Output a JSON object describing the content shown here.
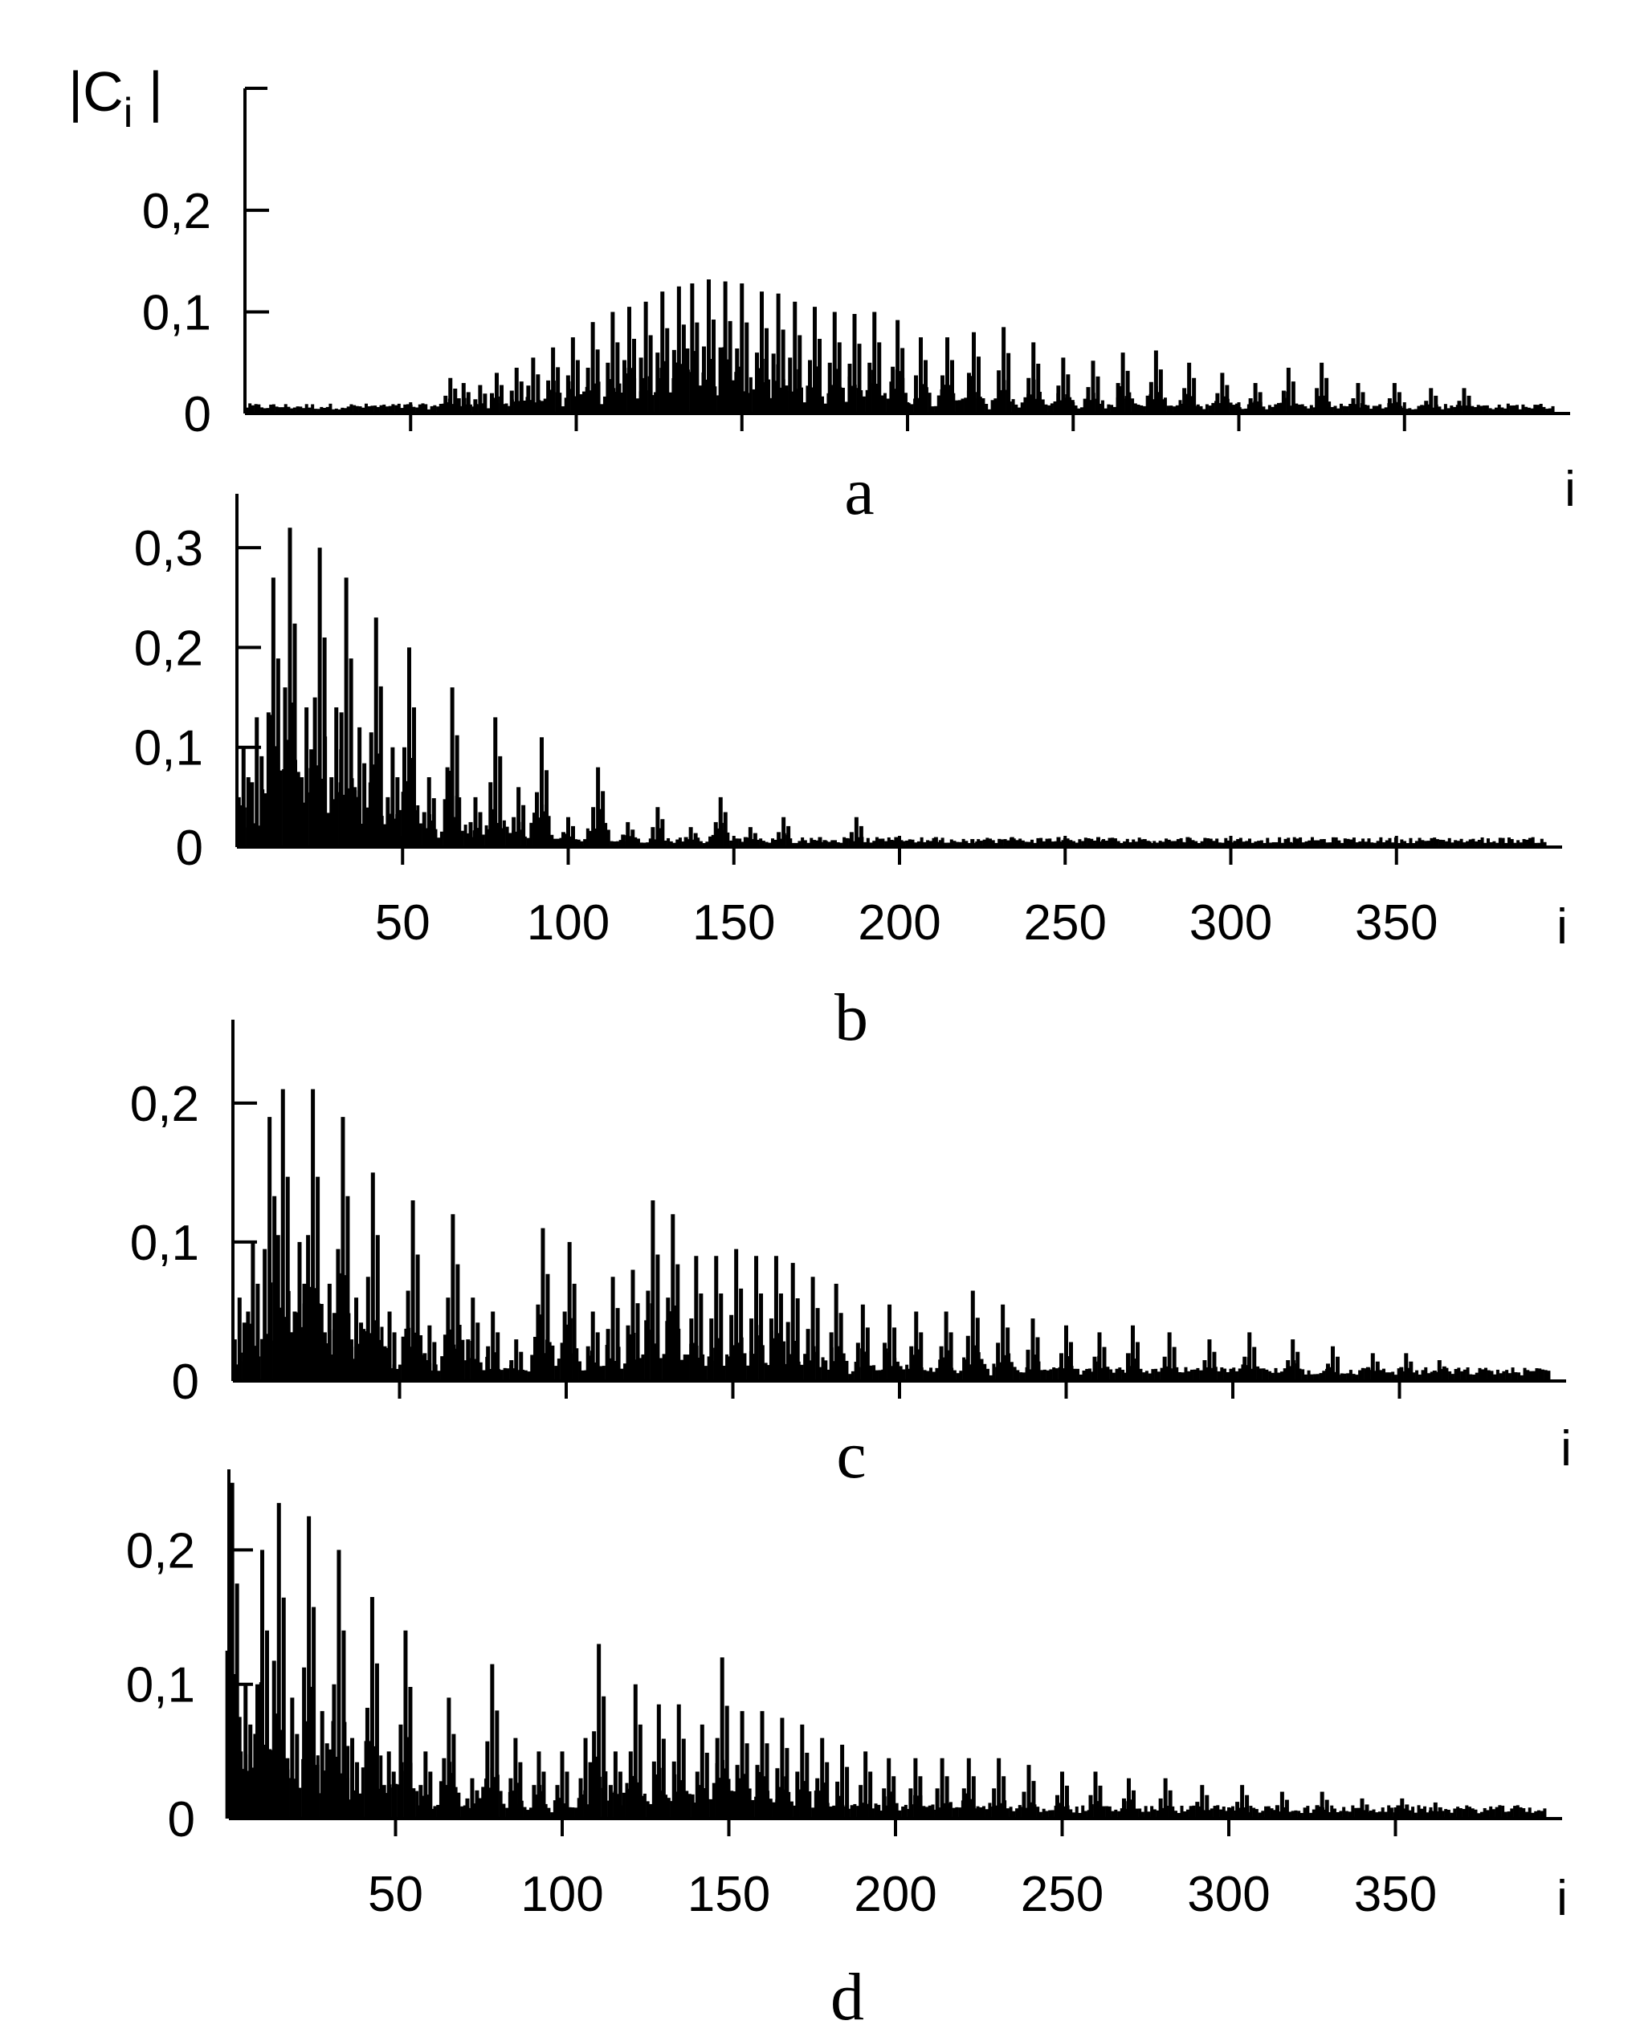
{
  "chart_data": [
    {
      "type": "bar",
      "panel_label": "a",
      "ylabel": "|C_i|",
      "xlabel": "i",
      "xlim": [
        0,
        400
      ],
      "ylim": [
        0,
        0.32
      ],
      "yticks": [
        {
          "value": 0,
          "label": "0"
        },
        {
          "value": 0.1,
          "label": "0,1"
        },
        {
          "value": 0.2,
          "label": "0,2"
        }
      ],
      "xticks": [
        {
          "value": 50,
          "label": ""
        },
        {
          "value": 100,
          "label": ""
        },
        {
          "value": 150,
          "label": ""
        },
        {
          "value": 200,
          "label": ""
        },
        {
          "value": 250,
          "label": ""
        },
        {
          "value": 300,
          "label": ""
        },
        {
          "value": 350,
          "label": ""
        }
      ],
      "peaks": [
        {
          "i": 62,
          "v": 0.035
        },
        {
          "i": 66,
          "v": 0.03
        },
        {
          "i": 71,
          "v": 0.028
        },
        {
          "i": 76,
          "v": 0.04
        },
        {
          "i": 82,
          "v": 0.045
        },
        {
          "i": 87,
          "v": 0.055
        },
        {
          "i": 93,
          "v": 0.065
        },
        {
          "i": 99,
          "v": 0.075
        },
        {
          "i": 105,
          "v": 0.09
        },
        {
          "i": 111,
          "v": 0.1
        },
        {
          "i": 116,
          "v": 0.105
        },
        {
          "i": 121,
          "v": 0.11
        },
        {
          "i": 126,
          "v": 0.12
        },
        {
          "i": 131,
          "v": 0.125
        },
        {
          "i": 135,
          "v": 0.128
        },
        {
          "i": 140,
          "v": 0.132
        },
        {
          "i": 145,
          "v": 0.13
        },
        {
          "i": 150,
          "v": 0.128
        },
        {
          "i": 156,
          "v": 0.12
        },
        {
          "i": 161,
          "v": 0.118
        },
        {
          "i": 166,
          "v": 0.11
        },
        {
          "i": 172,
          "v": 0.105
        },
        {
          "i": 178,
          "v": 0.1
        },
        {
          "i": 184,
          "v": 0.098
        },
        {
          "i": 190,
          "v": 0.1
        },
        {
          "i": 197,
          "v": 0.092
        },
        {
          "i": 204,
          "v": 0.075
        },
        {
          "i": 212,
          "v": 0.075
        },
        {
          "i": 220,
          "v": 0.08
        },
        {
          "i": 229,
          "v": 0.085
        },
        {
          "i": 238,
          "v": 0.07
        },
        {
          "i": 247,
          "v": 0.055
        },
        {
          "i": 256,
          "v": 0.052
        },
        {
          "i": 265,
          "v": 0.06
        },
        {
          "i": 275,
          "v": 0.062
        },
        {
          "i": 285,
          "v": 0.05
        },
        {
          "i": 295,
          "v": 0.04
        },
        {
          "i": 305,
          "v": 0.03
        },
        {
          "i": 315,
          "v": 0.045
        },
        {
          "i": 325,
          "v": 0.05
        },
        {
          "i": 336,
          "v": 0.03
        },
        {
          "i": 347,
          "v": 0.03
        },
        {
          "i": 358,
          "v": 0.025
        },
        {
          "i": 368,
          "v": 0.025
        }
      ]
    },
    {
      "type": "bar",
      "panel_label": "b",
      "ylabel": "",
      "xlabel": "i",
      "xlim": [
        0,
        400
      ],
      "ylim": [
        0,
        0.35
      ],
      "yticks": [
        {
          "value": 0,
          "label": "0"
        },
        {
          "value": 0.1,
          "label": "0,1"
        },
        {
          "value": 0.2,
          "label": "0,2"
        },
        {
          "value": 0.3,
          "label": "0,3"
        }
      ],
      "xticks": [
        {
          "value": 50,
          "label": "50"
        },
        {
          "value": 100,
          "label": "100"
        },
        {
          "value": 150,
          "label": "150"
        },
        {
          "value": 200,
          "label": "200"
        },
        {
          "value": 250,
          "label": "250"
        },
        {
          "value": 300,
          "label": "300"
        },
        {
          "value": 350,
          "label": "350"
        }
      ],
      "peaks": [
        {
          "i": 2,
          "v": 0.1
        },
        {
          "i": 6,
          "v": 0.13
        },
        {
          "i": 11,
          "v": 0.27
        },
        {
          "i": 16,
          "v": 0.32
        },
        {
          "i": 21,
          "v": 0.14
        },
        {
          "i": 25,
          "v": 0.3
        },
        {
          "i": 30,
          "v": 0.14
        },
        {
          "i": 33,
          "v": 0.27
        },
        {
          "i": 37,
          "v": 0.12
        },
        {
          "i": 42,
          "v": 0.23
        },
        {
          "i": 47,
          "v": 0.1
        },
        {
          "i": 52,
          "v": 0.2
        },
        {
          "i": 58,
          "v": 0.07
        },
        {
          "i": 65,
          "v": 0.16
        },
        {
          "i": 72,
          "v": 0.05
        },
        {
          "i": 78,
          "v": 0.13
        },
        {
          "i": 85,
          "v": 0.06
        },
        {
          "i": 92,
          "v": 0.11
        },
        {
          "i": 100,
          "v": 0.03
        },
        {
          "i": 109,
          "v": 0.08
        },
        {
          "i": 118,
          "v": 0.025
        },
        {
          "i": 127,
          "v": 0.04
        },
        {
          "i": 137,
          "v": 0.02
        },
        {
          "i": 146,
          "v": 0.05
        },
        {
          "i": 155,
          "v": 0.02
        },
        {
          "i": 165,
          "v": 0.03
        },
        {
          "i": 176,
          "v": 0.01
        },
        {
          "i": 187,
          "v": 0.03
        },
        {
          "i": 199,
          "v": 0.01
        },
        {
          "i": 211,
          "v": 0.01
        },
        {
          "i": 222,
          "v": 0.008
        },
        {
          "i": 234,
          "v": 0.01
        },
        {
          "i": 248,
          "v": 0.01
        },
        {
          "i": 260,
          "v": 0.01
        },
        {
          "i": 274,
          "v": 0.008
        },
        {
          "i": 287,
          "v": 0.01
        },
        {
          "i": 318,
          "v": 0.005
        },
        {
          "i": 345,
          "v": 0.004
        }
      ]
    },
    {
      "type": "bar",
      "panel_label": "c",
      "ylabel": "",
      "xlabel": "i",
      "xlim": [
        0,
        400
      ],
      "ylim": [
        0,
        0.26
      ],
      "yticks": [
        {
          "value": 0,
          "label": "0"
        },
        {
          "value": 0.1,
          "label": "0,1"
        },
        {
          "value": 0.2,
          "label": "0,2"
        }
      ],
      "xticks": [
        {
          "value": 50,
          "label": ""
        },
        {
          "value": 100,
          "label": ""
        },
        {
          "value": 150,
          "label": ""
        },
        {
          "value": 200,
          "label": ""
        },
        {
          "value": 250,
          "label": ""
        },
        {
          "value": 300,
          "label": ""
        },
        {
          "value": 350,
          "label": ""
        }
      ],
      "peaks": [
        {
          "i": 2,
          "v": 0.06
        },
        {
          "i": 6,
          "v": 0.1
        },
        {
          "i": 11,
          "v": 0.19
        },
        {
          "i": 15,
          "v": 0.21
        },
        {
          "i": 20,
          "v": 0.1
        },
        {
          "i": 24,
          "v": 0.21
        },
        {
          "i": 29,
          "v": 0.07
        },
        {
          "i": 33,
          "v": 0.19
        },
        {
          "i": 37,
          "v": 0.06
        },
        {
          "i": 42,
          "v": 0.15
        },
        {
          "i": 47,
          "v": 0.05
        },
        {
          "i": 54,
          "v": 0.13
        },
        {
          "i": 59,
          "v": 0.04
        },
        {
          "i": 66,
          "v": 0.12
        },
        {
          "i": 72,
          "v": 0.06
        },
        {
          "i": 78,
          "v": 0.05
        },
        {
          "i": 85,
          "v": 0.03
        },
        {
          "i": 93,
          "v": 0.11
        },
        {
          "i": 101,
          "v": 0.1
        },
        {
          "i": 108,
          "v": 0.05
        },
        {
          "i": 114,
          "v": 0.075
        },
        {
          "i": 120,
          "v": 0.08
        },
        {
          "i": 126,
          "v": 0.13
        },
        {
          "i": 132,
          "v": 0.12
        },
        {
          "i": 139,
          "v": 0.09
        },
        {
          "i": 145,
          "v": 0.09
        },
        {
          "i": 151,
          "v": 0.095
        },
        {
          "i": 157,
          "v": 0.09
        },
        {
          "i": 163,
          "v": 0.09
        },
        {
          "i": 168,
          "v": 0.085
        },
        {
          "i": 174,
          "v": 0.075
        },
        {
          "i": 181,
          "v": 0.07
        },
        {
          "i": 189,
          "v": 0.055
        },
        {
          "i": 197,
          "v": 0.055
        },
        {
          "i": 205,
          "v": 0.05
        },
        {
          "i": 214,
          "v": 0.05
        },
        {
          "i": 222,
          "v": 0.065
        },
        {
          "i": 231,
          "v": 0.055
        },
        {
          "i": 240,
          "v": 0.045
        },
        {
          "i": 250,
          "v": 0.04
        },
        {
          "i": 260,
          "v": 0.035
        },
        {
          "i": 270,
          "v": 0.04
        },
        {
          "i": 281,
          "v": 0.035
        },
        {
          "i": 293,
          "v": 0.03
        },
        {
          "i": 305,
          "v": 0.035
        },
        {
          "i": 318,
          "v": 0.03
        },
        {
          "i": 330,
          "v": 0.025
        },
        {
          "i": 342,
          "v": 0.02
        },
        {
          "i": 352,
          "v": 0.02
        },
        {
          "i": 362,
          "v": 0.015
        }
      ]
    },
    {
      "type": "bar",
      "panel_label": "d",
      "ylabel": "",
      "xlabel": "i",
      "xlim": [
        0,
        400
      ],
      "ylim": [
        0,
        0.26
      ],
      "yticks": [
        {
          "value": 0,
          "label": "0"
        },
        {
          "value": 0.1,
          "label": "0,1"
        },
        {
          "value": 0.2,
          "label": "0,2"
        }
      ],
      "xticks": [
        {
          "value": 50,
          "label": "50"
        },
        {
          "value": 100,
          "label": "100"
        },
        {
          "value": 150,
          "label": "150"
        },
        {
          "value": 200,
          "label": "200"
        },
        {
          "value": 250,
          "label": "250"
        },
        {
          "value": 300,
          "label": "300"
        },
        {
          "value": 350,
          "label": "350"
        }
      ],
      "peaks": [
        {
          "i": 1,
          "v": 0.25
        },
        {
          "i": 5,
          "v": 0.1
        },
        {
          "i": 10,
          "v": 0.2
        },
        {
          "i": 15,
          "v": 0.235
        },
        {
          "i": 19,
          "v": 0.09
        },
        {
          "i": 24,
          "v": 0.225
        },
        {
          "i": 28,
          "v": 0.08
        },
        {
          "i": 33,
          "v": 0.2
        },
        {
          "i": 37,
          "v": 0.06
        },
        {
          "i": 43,
          "v": 0.165
        },
        {
          "i": 48,
          "v": 0.05
        },
        {
          "i": 53,
          "v": 0.14
        },
        {
          "i": 59,
          "v": 0.05
        },
        {
          "i": 66,
          "v": 0.09
        },
        {
          "i": 73,
          "v": 0.03
        },
        {
          "i": 79,
          "v": 0.115
        },
        {
          "i": 86,
          "v": 0.06
        },
        {
          "i": 93,
          "v": 0.05
        },
        {
          "i": 100,
          "v": 0.05
        },
        {
          "i": 107,
          "v": 0.06
        },
        {
          "i": 111,
          "v": 0.13
        },
        {
          "i": 116,
          "v": 0.05
        },
        {
          "i": 122,
          "v": 0.1
        },
        {
          "i": 129,
          "v": 0.085
        },
        {
          "i": 135,
          "v": 0.085
        },
        {
          "i": 142,
          "v": 0.07
        },
        {
          "i": 148,
          "v": 0.12
        },
        {
          "i": 154,
          "v": 0.08
        },
        {
          "i": 160,
          "v": 0.08
        },
        {
          "i": 166,
          "v": 0.075
        },
        {
          "i": 172,
          "v": 0.07
        },
        {
          "i": 178,
          "v": 0.06
        },
        {
          "i": 184,
          "v": 0.055
        },
        {
          "i": 191,
          "v": 0.05
        },
        {
          "i": 198,
          "v": 0.045
        },
        {
          "i": 206,
          "v": 0.045
        },
        {
          "i": 214,
          "v": 0.045
        },
        {
          "i": 222,
          "v": 0.045
        },
        {
          "i": 231,
          "v": 0.045
        },
        {
          "i": 240,
          "v": 0.04
        },
        {
          "i": 250,
          "v": 0.035
        },
        {
          "i": 260,
          "v": 0.035
        },
        {
          "i": 270,
          "v": 0.03
        },
        {
          "i": 281,
          "v": 0.03
        },
        {
          "i": 292,
          "v": 0.025
        },
        {
          "i": 304,
          "v": 0.025
        },
        {
          "i": 316,
          "v": 0.02
        },
        {
          "i": 328,
          "v": 0.02
        },
        {
          "i": 340,
          "v": 0.015
        },
        {
          "i": 352,
          "v": 0.015
        },
        {
          "i": 362,
          "v": 0.012
        }
      ]
    }
  ]
}
